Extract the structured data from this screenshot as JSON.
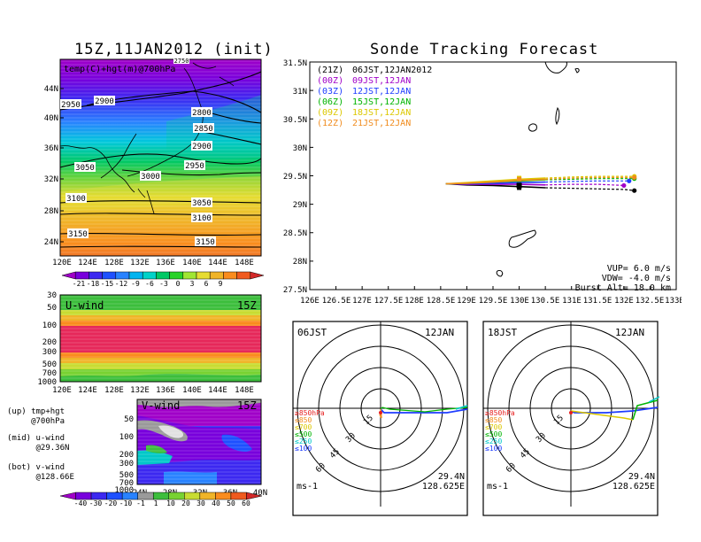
{
  "titles": {
    "left": "15Z,11JAN2012 (init)",
    "right": "Sonde Tracking Forecast"
  },
  "map_panel": {
    "subtitle": "temp(C)+hgt(m)@700hPa",
    "lat_labels": [
      "44N",
      "40N",
      "36N",
      "32N",
      "28N",
      "24N"
    ],
    "lon_labels": [
      "120E",
      "124E",
      "128E",
      "132E",
      "136E",
      "140E",
      "144E",
      "148E"
    ],
    "contour_labels": [
      "2950",
      "2900",
      "2800",
      "2850",
      "2900",
      "2950",
      "3050",
      "3000",
      "3100",
      "3050",
      "3100",
      "3150",
      "3150",
      "2750"
    ],
    "colorbar_labels": [
      "-21",
      "-18",
      "-15",
      "-12",
      "-9",
      "-6",
      "-3",
      "0",
      "3",
      "6",
      "9"
    ],
    "colorbar_colors": [
      "#a000c8",
      "#7800dc",
      "#3c28f0",
      "#1e50ff",
      "#2882ff",
      "#00b4f0",
      "#00d2c8",
      "#00c864",
      "#28d228",
      "#a0e632",
      "#e6dc32",
      "#f0b428",
      "#fa8c1e",
      "#f05a1e",
      "#d22828"
    ]
  },
  "uwind_panel": {
    "title": "U-wind",
    "time": "15Z",
    "y_labels": [
      "30",
      "50",
      "100",
      "200",
      "300",
      "500",
      "700",
      "1000"
    ],
    "x_labels": [
      "120E",
      "124E",
      "128E",
      "132E",
      "136E",
      "140E",
      "144E",
      "148E"
    ]
  },
  "vwind_panel": {
    "title": "V-wind",
    "time": "15Z",
    "y_labels": [
      "50",
      "100",
      "200",
      "300",
      "500",
      "700",
      "1000"
    ],
    "x_labels": [
      "24N",
      "28N",
      "32N",
      "36N",
      "40N"
    ],
    "colorbar_labels": [
      "-40",
      "-30",
      "-20",
      "-10",
      "-1",
      "1",
      "10",
      "20",
      "30",
      "40",
      "50",
      "60"
    ],
    "colorbar_colors": [
      "#a000c8",
      "#7800dc",
      "#3c28f0",
      "#1e50ff",
      "#2882ff",
      "#9a9a9a",
      "#3cbe3c",
      "#78d232",
      "#c8dc32",
      "#f0b428",
      "#fa8c1e",
      "#f05a1e",
      "#d22828"
    ]
  },
  "left_notes": [
    {
      "text": "(up) tmp+hgt\n     @700hPa"
    },
    {
      "text": "(mid) u-wind\n      @29.36N"
    },
    {
      "text": "(bot) v-wind\n      @128.66E"
    }
  ],
  "track_panel": {
    "lat_labels": [
      "31.5N",
      "31N",
      "30.5N",
      "30N",
      "29.5N",
      "29N",
      "28.5N",
      "28N",
      "27.5N"
    ],
    "lon_labels": [
      "126E",
      "126.5E",
      "127E",
      "127.5E",
      "128E",
      "128.5E",
      "129E",
      "129.5E",
      "130E",
      "130.5E",
      "131E",
      "131.5E",
      "132E",
      "132.5E",
      "133E"
    ],
    "legend": [
      {
        "code": "(21Z)",
        "text": "06JST,12JAN2012",
        "color": "#000000"
      },
      {
        "code": "(00Z)",
        "text": "09JST,12JAN",
        "color": "#a000c8"
      },
      {
        "code": "(03Z)",
        "text": "12JST,12JAN",
        "color": "#1e3cff"
      },
      {
        "code": "(06Z)",
        "text": "15JST,12JAN",
        "color": "#00b400"
      },
      {
        "code": "(09Z)",
        "text": "18JST,12JAN",
        "color": "#dcc800"
      },
      {
        "code": "(12Z)",
        "text": "21JST,12JAN",
        "color": "#f08c1e"
      }
    ],
    "params": [
      "VUP=  6.0 m/s",
      "VDW= -4.0 m/s",
      "Burst Alt= 18.0 km"
    ]
  },
  "hodographs": [
    {
      "time": "06JST",
      "date": "12JAN",
      "rings": [
        "15",
        "30",
        "45",
        "60"
      ],
      "unit": "ms-1",
      "lat": "29.4N",
      "lon": "128.625E"
    },
    {
      "time": "18JST",
      "date": "12JAN",
      "rings": [
        "15",
        "30",
        "45",
        "60"
      ],
      "unit": "ms-1",
      "lat": "29.4N",
      "lon": "128.625E"
    }
  ],
  "hodo_legend": [
    {
      "text": "≥850hPa",
      "color": "#e61e1e"
    },
    {
      "text": "≤850",
      "color": "#f08c1e"
    },
    {
      "text": "≤700",
      "color": "#dcc800"
    },
    {
      "text": "≤500",
      "color": "#00b400"
    },
    {
      "text": "≤250",
      "color": "#00c8c8"
    },
    {
      "text": "≤100",
      "color": "#1e3cff"
    }
  ],
  "chart_data": [
    {
      "type": "heatmap",
      "title": "15Z,11JAN2012 (init)",
      "subtitle": "temp(C)+hgt(m)@700hPa",
      "x_ticks": [
        "120E",
        "124E",
        "128E",
        "132E",
        "136E",
        "140E",
        "144E",
        "148E"
      ],
      "y_ticks": [
        "24N",
        "28N",
        "32N",
        "36N",
        "40N",
        "44N"
      ],
      "xlim": [
        120,
        149
      ],
      "ylim": [
        21,
        47
      ],
      "contour_levels": [
        2750,
        2800,
        2850,
        2900,
        2950,
        3000,
        3050,
        3100,
        3150
      ],
      "colorbar": [
        -21,
        -18,
        -15,
        -12,
        -9,
        -6,
        -3,
        0,
        3,
        6,
        9
      ]
    },
    {
      "type": "heatmap",
      "title": "U-wind",
      "annotation": "15Z",
      "x_ticks": [
        "120E",
        "124E",
        "128E",
        "132E",
        "136E",
        "140E",
        "144E",
        "148E"
      ],
      "y_ticks": [
        30,
        50,
        100,
        200,
        300,
        500,
        700,
        1000
      ],
      "ylim": [
        1000,
        30
      ]
    },
    {
      "type": "heatmap",
      "title": "V-wind",
      "annotation": "15Z",
      "x_ticks": [
        "24N",
        "28N",
        "32N",
        "36N",
        "40N"
      ],
      "y_ticks": [
        50,
        100,
        200,
        300,
        500,
        700,
        1000
      ],
      "ylim": [
        1000,
        30
      ],
      "colorbar": [
        -40,
        -30,
        -20,
        -10,
        -1,
        1,
        10,
        20,
        30,
        40,
        50,
        60
      ]
    },
    {
      "type": "line",
      "title": "Sonde Tracking Forecast",
      "xlim": [
        126,
        133
      ],
      "ylim": [
        27.5,
        31.5
      ],
      "x_ticks": [
        126,
        126.5,
        127,
        127.5,
        128,
        128.5,
        129,
        129.5,
        130,
        130.5,
        131,
        131.5,
        132,
        132.5,
        133
      ],
      "y_ticks": [
        27.5,
        28,
        28.5,
        29,
        29.5,
        30,
        30.5,
        31,
        31.5
      ],
      "series": [
        {
          "name": "(21Z) 06JST,12JAN2012",
          "color": "#000000",
          "x": [
            128.6,
            129.0,
            129.5,
            130.0,
            130.5,
            131.0,
            131.5,
            132.0,
            132.2
          ],
          "y": [
            29.36,
            29.34,
            29.33,
            29.31,
            29.29,
            29.28,
            29.27,
            29.26,
            29.24
          ]
        },
        {
          "name": "(00Z) 09JST,12JAN",
          "color": "#a000c8",
          "x": [
            128.6,
            129.0,
            129.5,
            130.0,
            130.5,
            131.0,
            131.5,
            132.0
          ],
          "y": [
            29.36,
            29.35,
            29.35,
            29.35,
            29.34,
            29.35,
            29.35,
            29.33
          ]
        },
        {
          "name": "(03Z) 12JST,12JAN",
          "color": "#1e3cff",
          "x": [
            128.6,
            129.0,
            129.5,
            130.0,
            130.5,
            131.0,
            131.5,
            132.1
          ],
          "y": [
            29.36,
            29.36,
            29.37,
            29.38,
            29.39,
            29.4,
            29.41,
            29.41
          ]
        },
        {
          "name": "(06Z) 15JST,12JAN",
          "color": "#00b400",
          "x": [
            128.6,
            129.0,
            129.5,
            130.0,
            130.5,
            131.0,
            131.5,
            132.2
          ],
          "y": [
            29.36,
            29.37,
            29.39,
            29.41,
            29.43,
            29.44,
            29.45,
            29.45
          ]
        },
        {
          "name": "(09Z) 18JST,12JAN",
          "color": "#dcc800",
          "x": [
            128.6,
            129.0,
            129.5,
            130.0,
            130.5,
            131.0,
            131.5,
            132.2
          ],
          "y": [
            29.36,
            29.38,
            29.41,
            29.44,
            29.46,
            29.48,
            29.49,
            29.49
          ]
        },
        {
          "name": "(12Z) 21JST,12JAN",
          "color": "#f08c1e",
          "x": [
            128.6,
            129.0,
            129.5,
            130.0,
            130.5,
            131.0,
            131.5,
            132.2
          ],
          "y": [
            29.36,
            29.37,
            29.39,
            29.42,
            29.44,
            29.46,
            29.47,
            29.47
          ]
        }
      ]
    }
  ]
}
